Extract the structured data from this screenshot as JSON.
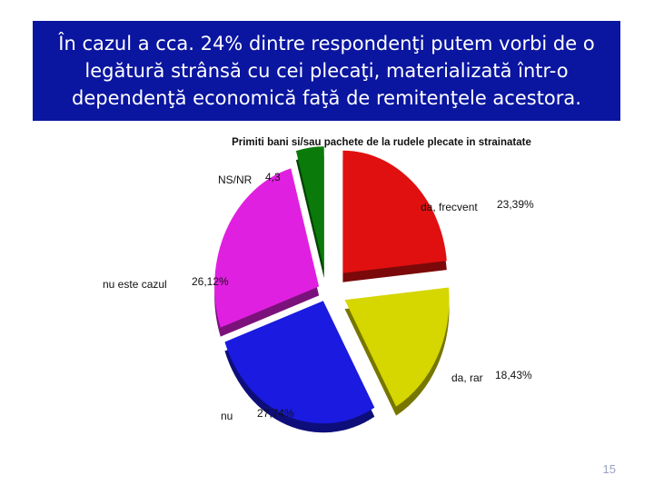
{
  "slide": {
    "title": "În cazul a cca. 24% dintre respondenţi putem vorbi de o legătură strânsă cu cei plecaţi, materializată într-o dependenţă economică faţă de remitenţele acestora.",
    "page_number": "15",
    "colors": {
      "title_background": "#0a15a0",
      "title_text": "#ffffff"
    }
  },
  "chart_data": {
    "type": "pie",
    "style": "3d-exploded",
    "title": "Primiti bani si/sau pachete de la rudele plecate in strainatate",
    "slices": [
      {
        "label": "da, frecvent",
        "value_label": "23,39%",
        "value": 23.39,
        "color": "#e01010"
      },
      {
        "label": "da, rar",
        "value_label": "18,43%",
        "value": 18.43,
        "color": "#d6d600"
      },
      {
        "label": "nu",
        "value_label": "27,74%",
        "value": 27.74,
        "color": "#1a1ae0"
      },
      {
        "label": "nu este cazul",
        "value_label": "26,12%",
        "value": 26.12,
        "color": "#e020e0"
      },
      {
        "label": "NS/NR",
        "value_label": "4,3",
        "value": 4.32,
        "color": "#0a7a0a"
      }
    ],
    "legend": "none"
  }
}
